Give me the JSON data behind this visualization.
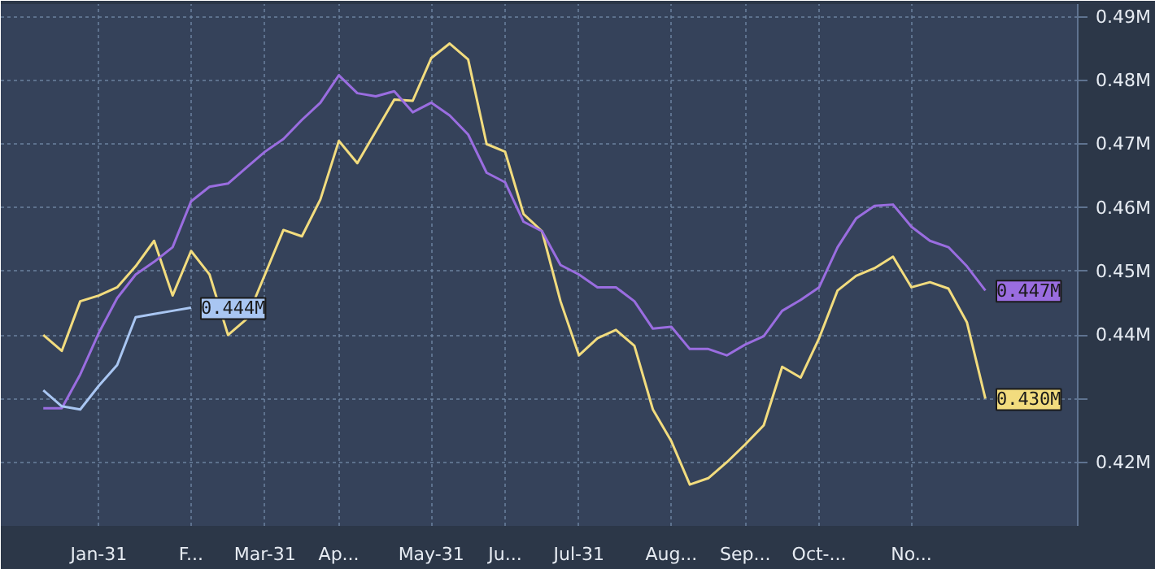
{
  "chart_data": {
    "type": "line",
    "categories": [
      null,
      null,
      null,
      "Jan-31",
      null,
      null,
      null,
      null,
      "F...",
      null,
      null,
      null,
      "Mar-31",
      null,
      null,
      null,
      "Ap...",
      null,
      null,
      null,
      null,
      "May-31",
      null,
      null,
      null,
      "Ju...",
      null,
      null,
      null,
      "Jul-31",
      null,
      null,
      null,
      null,
      "Aug...",
      null,
      null,
      null,
      "Sep...",
      null,
      null,
      null,
      "Oct-...",
      null,
      null,
      null,
      null,
      "No...",
      null,
      null,
      null,
      null
    ],
    "series": [
      {
        "color": "#f2dc7e",
        "values": [
          0.44,
          0.4375,
          0.4453,
          0.4462,
          0.4475,
          0.4508,
          0.4548,
          0.4462,
          0.4532,
          0.4495,
          0.44,
          0.4425,
          0.4495,
          0.4565,
          0.4555,
          0.4613,
          0.4705,
          0.467,
          0.472,
          0.477,
          0.4768,
          0.4835,
          0.4858,
          0.4833,
          0.47,
          0.4688,
          0.459,
          0.4563,
          0.4453,
          0.4368,
          0.4395,
          0.4408,
          0.4383,
          0.4283,
          0.4233,
          0.4165,
          0.4175,
          0.42,
          0.4228,
          0.4258,
          0.435,
          0.4333,
          0.4395,
          0.447,
          0.4493,
          0.4505,
          0.4523,
          0.4475,
          0.4483,
          0.4473,
          0.442,
          0.43
        ],
        "value_labels": [
          null,
          null,
          null,
          null,
          null,
          null,
          null,
          null,
          null,
          null,
          null,
          null,
          null,
          null,
          null,
          null,
          null,
          null,
          null,
          null,
          null,
          null,
          null,
          null,
          null,
          null,
          null,
          null,
          null,
          null,
          null,
          null,
          null,
          null,
          null,
          null,
          null,
          null,
          null,
          null,
          null,
          null,
          null,
          null,
          null,
          null,
          null,
          null,
          null,
          null,
          null,
          "0.430M"
        ]
      },
      {
        "color": "#9a6de0",
        "values": [
          0.4285,
          0.4285,
          0.4338,
          0.4403,
          0.4458,
          0.4495,
          0.4515,
          0.4538,
          0.461,
          0.4633,
          0.4638,
          0.4663,
          0.4688,
          0.4708,
          0.4738,
          0.4765,
          0.4808,
          0.478,
          0.4775,
          0.4783,
          0.475,
          0.4765,
          0.4745,
          0.4715,
          0.4655,
          0.464,
          0.4578,
          0.4563,
          0.451,
          0.4495,
          0.4475,
          0.4475,
          0.4453,
          0.441,
          0.4413,
          0.4378,
          0.4378,
          0.4368,
          0.4385,
          0.4398,
          0.4438,
          0.4455,
          0.4475,
          0.4538,
          0.4583,
          0.4603,
          0.4605,
          0.457,
          0.4548,
          0.4538,
          0.4508,
          0.447
        ],
        "value_labels": [
          null,
          null,
          null,
          null,
          null,
          null,
          null,
          null,
          null,
          null,
          null,
          null,
          null,
          null,
          null,
          null,
          null,
          null,
          null,
          null,
          null,
          null,
          null,
          null,
          null,
          null,
          null,
          null,
          null,
          null,
          null,
          null,
          null,
          null,
          null,
          null,
          null,
          null,
          null,
          null,
          null,
          null,
          null,
          null,
          null,
          null,
          null,
          null,
          null,
          null,
          null,
          "0.447M"
        ]
      },
      {
        "color": "#a9c6f2",
        "values": [
          0.4313,
          0.4288,
          0.4283,
          0.432,
          0.4353,
          0.4428,
          0.4433,
          0.4438,
          0.4443,
          null,
          null,
          null,
          null,
          null,
          null,
          null,
          null,
          null,
          null,
          null,
          null,
          null,
          null,
          null,
          null,
          null,
          null,
          null,
          null,
          null,
          null,
          null,
          null,
          null,
          null,
          null,
          null,
          null,
          null,
          null,
          null,
          null,
          null,
          null,
          null,
          null,
          null,
          null,
          null,
          null,
          null,
          null
        ],
        "value_labels": [
          null,
          null,
          null,
          null,
          null,
          null,
          null,
          null,
          "0.444M",
          null,
          null,
          null,
          null,
          null,
          null,
          null,
          null,
          null,
          null,
          null,
          null,
          null,
          null,
          null,
          null,
          null,
          null,
          null,
          null,
          null,
          null,
          null,
          null,
          null,
          null,
          null,
          null,
          null,
          null,
          null,
          null,
          null,
          null,
          null,
          null,
          null,
          null,
          null,
          null,
          null,
          null,
          null
        ]
      }
    ],
    "ylim": [
      0.41,
      0.492
    ],
    "yticks": [
      {
        "value": 0.42,
        "label": "0.42M"
      },
      {
        "value": 0.43,
        "label": null
      },
      {
        "value": 0.44,
        "label": "0.44M"
      },
      {
        "value": 0.45,
        "label": "0.45M"
      },
      {
        "value": 0.46,
        "label": "0.46M"
      },
      {
        "value": 0.47,
        "label": "0.47M"
      },
      {
        "value": 0.48,
        "label": "0.48M"
      },
      {
        "value": 0.49,
        "label": "0.49M"
      }
    ],
    "grid": true,
    "marker": "none",
    "line_style": "solid"
  }
}
